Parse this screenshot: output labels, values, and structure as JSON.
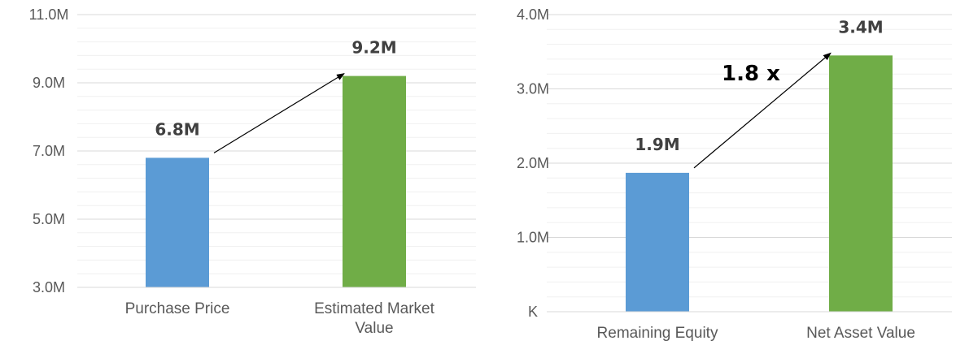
{
  "chart_data": [
    {
      "type": "bar",
      "categories": [
        "Purchase Price",
        "Estimated Market Value"
      ],
      "values": [
        6.8,
        9.2
      ],
      "value_labels": [
        "6.8M",
        "9.2M"
      ],
      "category_lines": [
        [
          "Purchase Price"
        ],
        [
          "Estimated Market",
          "Value"
        ]
      ],
      "colors": [
        "#5b9bd5",
        "#70ad47"
      ],
      "ylim": [
        3,
        11
      ],
      "yticks": [
        3,
        5,
        7,
        9,
        11
      ],
      "ytick_labels": [
        "3.0M",
        "5.0M",
        "7.0M",
        "9.0M",
        "11.0M"
      ],
      "grid": true,
      "annotation": ""
    },
    {
      "type": "bar",
      "categories": [
        "Remaining Equity",
        "Net Asset Value"
      ],
      "values": [
        1.87,
        3.45
      ],
      "value_labels": [
        "1.9M",
        "3.4M"
      ],
      "category_lines": [
        [
          "Remaining Equity"
        ],
        [
          "Net Asset Value"
        ]
      ],
      "colors": [
        "#5b9bd5",
        "#70ad47"
      ],
      "ylim": [
        0,
        4
      ],
      "yticks": [
        0,
        1,
        2,
        3,
        4
      ],
      "ytick_labels": [
        "K",
        "1.0M",
        "2.0M",
        "3.0M",
        "4.0M"
      ],
      "grid": true,
      "annotation": "1.8 x"
    }
  ]
}
